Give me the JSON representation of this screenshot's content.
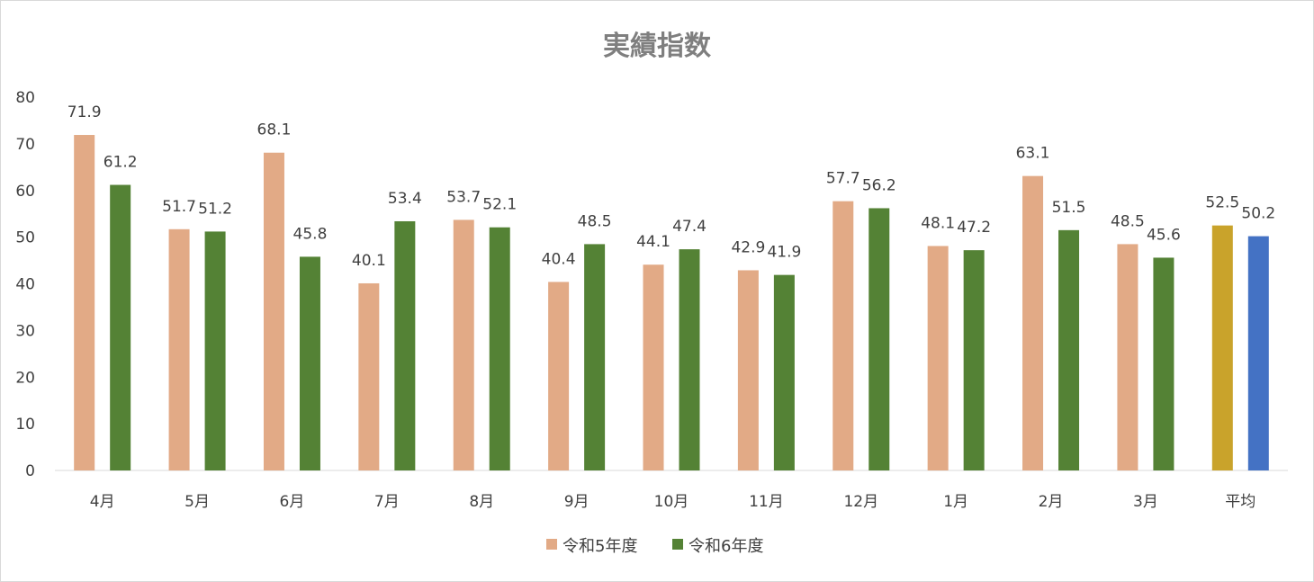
{
  "chart_data": {
    "type": "bar",
    "title": "実績指数",
    "xlabel": "",
    "ylabel": "",
    "ylim": [
      0,
      80
    ],
    "yticks": [
      0,
      10,
      20,
      30,
      40,
      50,
      60,
      70,
      80
    ],
    "grid": false,
    "legend_position": "bottom",
    "categories": [
      "4月",
      "5月",
      "6月",
      "7月",
      "8月",
      "9月",
      "10月",
      "11月",
      "12月",
      "1月",
      "2月",
      "3月",
      "平均"
    ],
    "series": [
      {
        "name": "令和5年度",
        "color": "#e2aa86",
        "values": [
          71.9,
          51.7,
          68.1,
          40.1,
          53.7,
          40.4,
          44.1,
          42.9,
          57.7,
          48.1,
          63.1,
          48.5,
          52.5
        ]
      },
      {
        "name": "令和6年度",
        "color": "#548235",
        "values": [
          61.2,
          51.2,
          45.8,
          53.4,
          52.1,
          48.5,
          47.4,
          41.9,
          56.2,
          47.2,
          51.5,
          45.6,
          50.2
        ]
      }
    ],
    "average_bar_colors": [
      "#c9a32b",
      "#4472c4"
    ]
  }
}
